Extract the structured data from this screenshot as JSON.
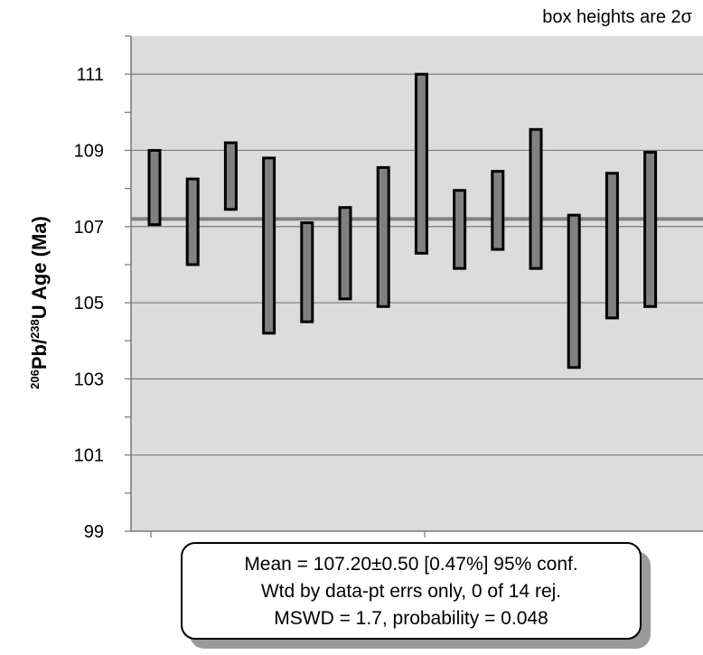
{
  "chart_data": {
    "type": "box-error",
    "note": "box heights are 2σ",
    "ylabel": {
      "sup1": "206",
      "mid": "Pb/",
      "sup2": "238",
      "tail": "U Age (Ma)"
    },
    "ylim": [
      99,
      112
    ],
    "yticks": [
      99,
      101,
      103,
      105,
      107,
      109,
      111
    ],
    "grid": true,
    "background": "#dcdcdc",
    "box_color": "#808080",
    "mean_line": 107.2,
    "mean_line_color": "#808080",
    "boxes": [
      {
        "low": 107.05,
        "high": 109.0
      },
      {
        "low": 106.0,
        "high": 108.25
      },
      {
        "low": 107.45,
        "high": 109.2
      },
      {
        "low": 104.2,
        "high": 108.8
      },
      {
        "low": 104.5,
        "high": 107.1
      },
      {
        "low": 105.1,
        "high": 107.5
      },
      {
        "low": 104.9,
        "high": 108.55
      },
      {
        "low": 106.3,
        "high": 111.0
      },
      {
        "low": 105.9,
        "high": 107.95
      },
      {
        "low": 106.4,
        "high": 108.45
      },
      {
        "low": 105.9,
        "high": 109.55
      },
      {
        "low": 103.3,
        "high": 107.3
      },
      {
        "low": 104.6,
        "high": 108.4
      },
      {
        "low": 104.9,
        "high": 108.95
      }
    ],
    "stats": {
      "line1": "Mean = 107.20±0.50  [0.47%]  95% conf.",
      "line2": "Wtd by data-pt errs only, 0 of 14 rej.",
      "line3": "MSWD = 1.7, probability = 0.048"
    }
  }
}
